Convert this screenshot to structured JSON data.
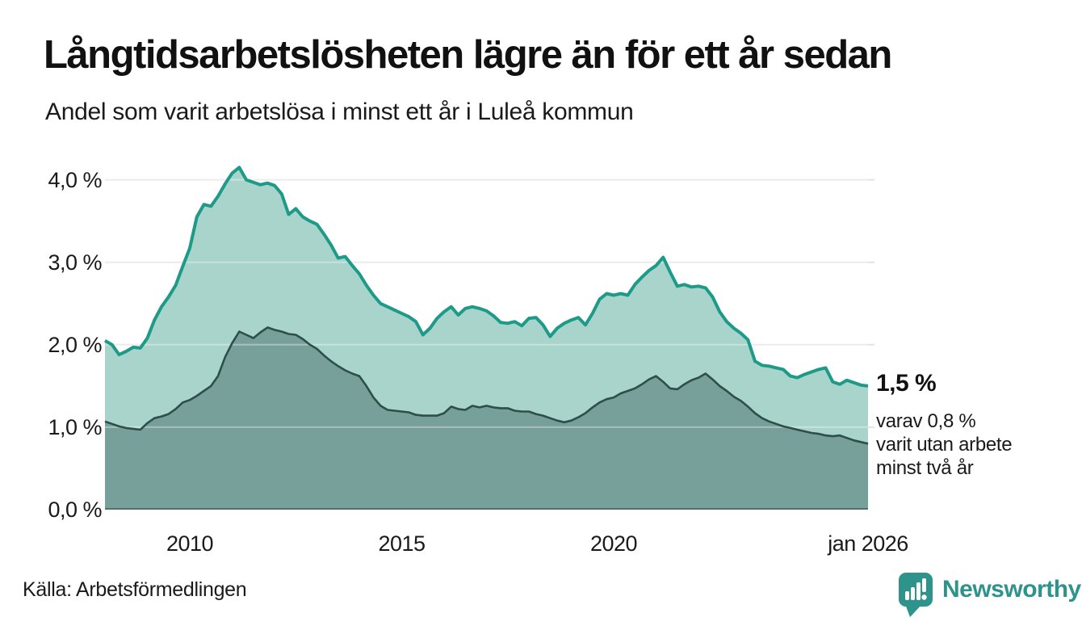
{
  "header": {
    "title": "Långtidsarbetslösheten lägre än för ett år sedan",
    "subtitle": "Andel som varit arbetslösa i minst ett år i Luleå kommun"
  },
  "annotation": {
    "value": "1,5 %",
    "detail_lines": [
      "varav 0,8 %",
      "varit utan arbete",
      "minst två år"
    ]
  },
  "footer": {
    "source": "Källa: Arbetsförmedlingen",
    "brand_name": "Newsworthy"
  },
  "colors": {
    "title_text": "#111111",
    "body_text": "#1a1a1a",
    "grid": "#e3e3e3",
    "grid_overlay": "rgba(255,255,255,0.35)",
    "baseline": "rgba(46,79,73,0.55)",
    "brand_teal": "#2e938a",
    "series_1yr_line": "#1d9a88",
    "series_1yr_fill": "#a9d4cc",
    "series_2yr_line": "#2e4f49",
    "series_2yr_fill": "#78a09a"
  },
  "chart_data": {
    "type": "area",
    "title": "Långtidsarbetslösheten lägre än för ett år sedan",
    "subtitle": "Andel som varit arbetslösa i minst ett år i Luleå kommun",
    "unit": "%",
    "x_start": "2008-01",
    "x_end": "2026-01",
    "x_step_months": 2,
    "ylim": [
      0,
      4.3
    ],
    "grid": true,
    "y_ticks": [
      {
        "label": "0,0 %",
        "value": 0
      },
      {
        "label": "1,0 %",
        "value": 1
      },
      {
        "label": "2,0 %",
        "value": 2
      },
      {
        "label": "3,0 %",
        "value": 3
      },
      {
        "label": "4,0 %",
        "value": 4
      }
    ],
    "x_ticks": [
      {
        "label": "2010",
        "index": 12
      },
      {
        "label": "2015",
        "index": 42
      },
      {
        "label": "2020",
        "index": 72
      },
      {
        "label": "jan 2026",
        "index": 108
      }
    ],
    "series": [
      {
        "name": "arbetslösa minst ett år",
        "end_label": "1,5 %",
        "values": [
          2.05,
          2.0,
          1.88,
          1.92,
          1.97,
          1.96,
          2.08,
          2.3,
          2.46,
          2.58,
          2.72,
          2.95,
          3.17,
          3.55,
          3.7,
          3.68,
          3.8,
          3.95,
          4.08,
          4.15,
          4.0,
          3.97,
          3.94,
          3.96,
          3.93,
          3.83,
          3.58,
          3.65,
          3.55,
          3.5,
          3.46,
          3.34,
          3.21,
          3.05,
          3.07,
          2.96,
          2.86,
          2.72,
          2.6,
          2.5,
          2.46,
          2.42,
          2.38,
          2.34,
          2.28,
          2.12,
          2.2,
          2.32,
          2.4,
          2.46,
          2.36,
          2.44,
          2.46,
          2.44,
          2.41,
          2.35,
          2.27,
          2.26,
          2.28,
          2.23,
          2.32,
          2.33,
          2.24,
          2.1,
          2.2,
          2.26,
          2.3,
          2.33,
          2.24,
          2.38,
          2.55,
          2.62,
          2.6,
          2.62,
          2.6,
          2.73,
          2.82,
          2.9,
          2.96,
          3.06,
          2.88,
          2.71,
          2.73,
          2.7,
          2.71,
          2.69,
          2.58,
          2.4,
          2.28,
          2.2,
          2.14,
          2.06,
          1.8,
          1.75,
          1.74,
          1.72,
          1.7,
          1.62,
          1.6,
          1.64,
          1.67,
          1.7,
          1.72,
          1.55,
          1.52,
          1.57,
          1.54,
          1.51,
          1.5
        ]
      },
      {
        "name": "arbetslösa minst två år",
        "end_label": "0,8 %",
        "values": [
          1.07,
          1.04,
          1.01,
          0.99,
          0.98,
          0.97,
          1.05,
          1.11,
          1.13,
          1.16,
          1.22,
          1.3,
          1.33,
          1.38,
          1.44,
          1.5,
          1.62,
          1.85,
          2.02,
          2.16,
          2.12,
          2.08,
          2.15,
          2.21,
          2.18,
          2.16,
          2.13,
          2.12,
          2.07,
          2.0,
          1.95,
          1.87,
          1.8,
          1.74,
          1.69,
          1.65,
          1.62,
          1.5,
          1.36,
          1.26,
          1.21,
          1.2,
          1.19,
          1.18,
          1.15,
          1.14,
          1.14,
          1.14,
          1.17,
          1.25,
          1.22,
          1.21,
          1.26,
          1.24,
          1.26,
          1.24,
          1.23,
          1.23,
          1.2,
          1.19,
          1.19,
          1.16,
          1.14,
          1.11,
          1.08,
          1.06,
          1.08,
          1.12,
          1.17,
          1.24,
          1.3,
          1.34,
          1.36,
          1.41,
          1.44,
          1.47,
          1.52,
          1.58,
          1.62,
          1.55,
          1.47,
          1.46,
          1.52,
          1.57,
          1.6,
          1.65,
          1.58,
          1.5,
          1.44,
          1.37,
          1.32,
          1.25,
          1.17,
          1.11,
          1.07,
          1.04,
          1.01,
          0.99,
          0.97,
          0.95,
          0.93,
          0.92,
          0.9,
          0.89,
          0.9,
          0.87,
          0.84,
          0.82,
          0.8
        ]
      }
    ],
    "legend_position": "none"
  }
}
